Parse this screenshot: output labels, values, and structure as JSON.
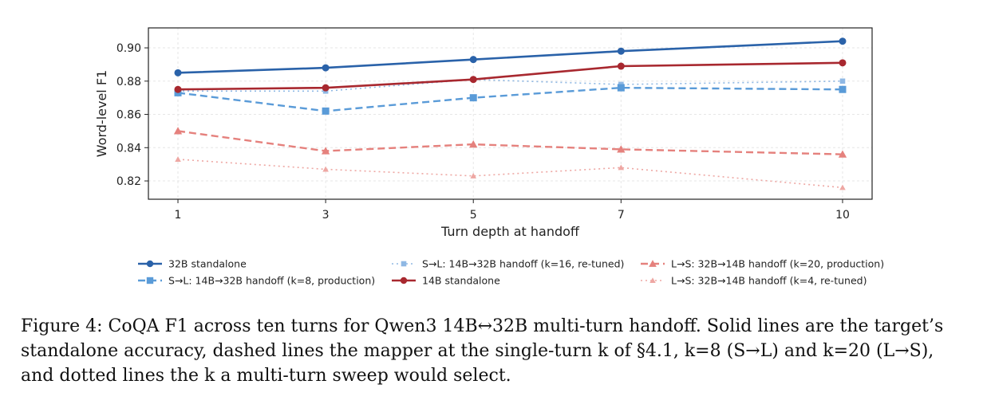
{
  "chart_data": {
    "type": "line",
    "title": "",
    "xlabel": "Turn depth at handoff",
    "ylabel": "Word-level F1",
    "x": [
      1,
      3,
      5,
      7,
      10
    ],
    "x_ticks": [
      "1",
      "3",
      "5",
      "7",
      "10"
    ],
    "y_ticks": [
      "0.82",
      "0.84",
      "0.86",
      "0.88",
      "0.90"
    ],
    "xlim": [
      0.6,
      10.4
    ],
    "ylim": [
      0.809,
      0.912
    ],
    "grid": true,
    "legend_position": "bottom",
    "series": [
      {
        "name": "32B standalone",
        "values": [
          0.885,
          0.888,
          0.893,
          0.898,
          0.904
        ],
        "color": "#2a62a9",
        "style": "solid",
        "marker": "circle"
      },
      {
        "name": "S→L: 14B→32B handoff (k=8, production)",
        "values": [
          0.873,
          0.862,
          0.87,
          0.876,
          0.875
        ],
        "color": "#5a9bd8",
        "style": "dashed",
        "marker": "square"
      },
      {
        "name": "S→L: 14B→32B handoff (k=16, re-tuned)",
        "values": [
          0.874,
          0.874,
          0.881,
          0.878,
          0.88
        ],
        "color": "#8fb8e4",
        "style": "dotted",
        "marker": "square"
      },
      {
        "name": "14B standalone",
        "values": [
          0.875,
          0.876,
          0.881,
          0.889,
          0.891
        ],
        "color": "#a8282f",
        "style": "solid",
        "marker": "circle"
      },
      {
        "name": "L→S: 32B→14B handoff (k=20, production)",
        "values": [
          0.85,
          0.838,
          0.842,
          0.839,
          0.836
        ],
        "color": "#e5817d",
        "style": "dashed",
        "marker": "triangle"
      },
      {
        "name": "L→S: 32B→14B handoff (k=4, re-tuned)",
        "values": [
          0.833,
          0.827,
          0.823,
          0.828,
          0.816
        ],
        "color": "#eea7a3",
        "style": "dotted",
        "marker": "triangle"
      }
    ]
  },
  "caption": "Figure 4: CoQA F1 across ten turns for Qwen3 14B↔32B multi-turn handoff. Solid lines are the target’s standalone accuracy, dashed lines the mapper at the single-turn k of §4.1, k=8 (S→L) and k=20 (L→S), and dotted lines the k a multi-turn sweep would select."
}
